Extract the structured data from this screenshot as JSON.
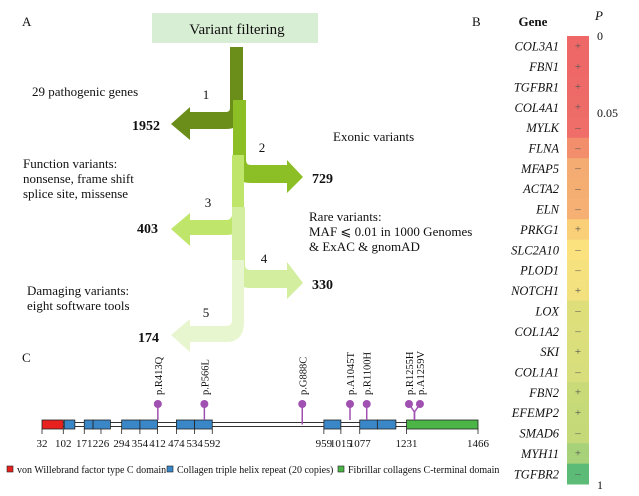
{
  "panel_a": {
    "label": "A",
    "title": "Variant filtering",
    "steps": [
      {
        "num": "1",
        "criterion": [
          "29 pathogenic genes"
        ],
        "count": "1952",
        "color": "#6b8e1a"
      },
      {
        "num": "2",
        "criterion": [
          "Exonic variants"
        ],
        "count": "729",
        "color": "#8cbf26"
      },
      {
        "num": "3",
        "criterion": [
          "Function variants:",
          "nonsense, frame shift",
          "splice site, missense"
        ],
        "count": "403",
        "color": "#bfe66a"
      },
      {
        "num": "4",
        "criterion": [
          "Rare variants:",
          "MAF ⩽ 0.01 in 1000 Genomes",
          "& ExAC & gnomAD"
        ],
        "count": "330",
        "color": "#d2ee9e"
      },
      {
        "num": "5",
        "criterion": [
          "Damaging variants:",
          "eight software tools"
        ],
        "count": "174",
        "color": "#e8f6cf"
      }
    ],
    "count_color": "#8dbb2e",
    "title_bg": "#d8eed4"
  },
  "panel_b": {
    "label": "B",
    "header": "Gene",
    "p_label": "P",
    "scale_labels": {
      "top": "0",
      "mid": "0.05",
      "bottom": "1"
    },
    "rows": [
      {
        "gene": "COL3A1",
        "sign": "+",
        "color": "#ee6868"
      },
      {
        "gene": "FBN1",
        "sign": "+",
        "color": "#ee6868"
      },
      {
        "gene": "TGFBR1",
        "sign": "+",
        "color": "#ee6a68"
      },
      {
        "gene": "COL4A1",
        "sign": "+",
        "color": "#ee6c68"
      },
      {
        "gene": "MYLK",
        "sign": "–",
        "color": "#ef6e69"
      },
      {
        "gene": "FLNA",
        "sign": "–",
        "color": "#f28e6b"
      },
      {
        "gene": "MFAP5",
        "sign": "–",
        "color": "#f5ac72"
      },
      {
        "gene": "ACTA2",
        "sign": "–",
        "color": "#f5ae72"
      },
      {
        "gene": "ELN",
        "sign": "–",
        "color": "#f6b073"
      },
      {
        "gene": "PRKG1",
        "sign": "+",
        "color": "#f9cf78"
      },
      {
        "gene": "SLC2A10",
        "sign": "–",
        "color": "#fbe27e"
      },
      {
        "gene": "PLOD1",
        "sign": "–",
        "color": "#f5e27e"
      },
      {
        "gene": "NOTCH1",
        "sign": "+",
        "color": "#f2e17e"
      },
      {
        "gene": "LOX",
        "sign": "–",
        "color": "#dedf7b"
      },
      {
        "gene": "COL1A2",
        "sign": "–",
        "color": "#dcdf7b"
      },
      {
        "gene": "SKI",
        "sign": "+",
        "color": "#dadf7b"
      },
      {
        "gene": "COL1A1",
        "sign": "–",
        "color": "#d8de7b"
      },
      {
        "gene": "FBN2",
        "sign": "+",
        "color": "#c9da79"
      },
      {
        "gene": "EFEMP2",
        "sign": "+",
        "color": "#c7da79"
      },
      {
        "gene": "SMAD6",
        "sign": "–",
        "color": "#c5d979"
      },
      {
        "gene": "MYH11",
        "sign": "+",
        "color": "#a8d27a"
      },
      {
        "gene": "TGFBR2",
        "sign": "–",
        "color": "#5dbb78"
      }
    ]
  },
  "panel_c": {
    "label": "C",
    "protein_range": [
      32,
      1466
    ],
    "ticks": [
      "32",
      "102",
      "171",
      "226",
      "294",
      "354",
      "412",
      "474",
      "534",
      "592",
      "959",
      "1015",
      "1077",
      "1231",
      "1466"
    ],
    "domains": {
      "vwc": {
        "color": "#e8201e",
        "ranges": [
          [
            32,
            102
          ]
        ]
      },
      "collagen": {
        "color": "#3a87c8",
        "ranges": [
          [
            105,
            140
          ],
          [
            171,
            200
          ],
          [
            200,
            257
          ],
          [
            294,
            354
          ],
          [
            354,
            412
          ],
          [
            474,
            534
          ],
          [
            534,
            592
          ],
          [
            959,
            1015
          ],
          [
            1077,
            1135
          ],
          [
            1135,
            1196
          ]
        ]
      },
      "fibrillar": {
        "color": "#4cb548",
        "ranges": [
          [
            1231,
            1466
          ]
        ]
      }
    },
    "mutations": [
      {
        "label": "p.R413Q",
        "pos": 413
      },
      {
        "label": "p.P566L",
        "pos": 566
      },
      {
        "label": "p.G888C",
        "pos": 888
      },
      {
        "label": "p.A1045T",
        "pos": 1045
      },
      {
        "label": "p.R1100H",
        "pos": 1100
      },
      {
        "label": "p.R1255H",
        "pos": 1255
      },
      {
        "label": "p.A1259V",
        "pos": 1259
      }
    ],
    "mutation_color": "#a050b0",
    "legend": [
      {
        "label": "von Willebrand factor type C domain",
        "color": "#e8201e"
      },
      {
        "label": "Collagen triple helix repeat (20 copies)",
        "color": "#3a87c8"
      },
      {
        "label": "Fibrillar collagens C-terminal domain",
        "color": "#4cb548"
      }
    ]
  }
}
